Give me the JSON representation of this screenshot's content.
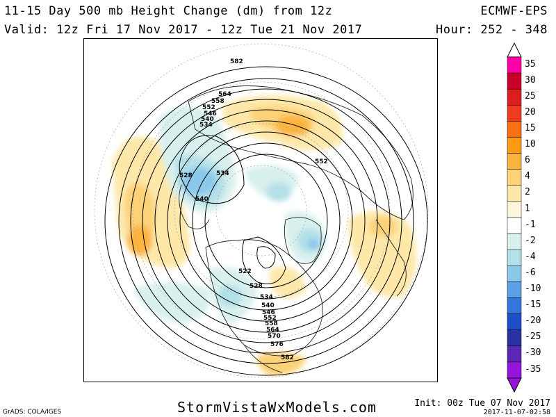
{
  "header": {
    "title": "11-15 Day 500 mb Height Change (dm) from 12z",
    "valid": "Valid: 12z Fri 17 Nov 2017 - 12z Tue 21 Nov 2017",
    "model": "ECMWF-EPS",
    "hour": "Hour: 252 - 348"
  },
  "footer": {
    "site": "StormVistaWxModels.com",
    "grads": "GrADS: COLA/IGES",
    "init": "Init: 00z Tue 07 Nov 2017",
    "stamp": "2017-11-07-02:58"
  },
  "colorbar": {
    "levels": [
      "35",
      "30",
      "25",
      "20",
      "15",
      "10",
      "6",
      "4",
      "2",
      "1",
      "-1",
      "-2",
      "-4",
      "-6",
      "-10",
      "-15",
      "-20",
      "-25",
      "-30",
      "-35"
    ],
    "colors": [
      "#ff00a8",
      "#c8002a",
      "#dc1e1e",
      "#f03c1e",
      "#fa6e14",
      "#ff9a14",
      "#fcb440",
      "#fcd278",
      "#fde8aa",
      "#fdf6dc",
      "#ffffff",
      "#d8f0ee",
      "#b4e0e8",
      "#8cc8ea",
      "#5aa0e6",
      "#3278dc",
      "#1e4ec8",
      "#2832a0",
      "#5a28b4",
      "#9614dc"
    ]
  },
  "contour_labels": [
    "582",
    "564",
    "558",
    "552",
    "546",
    "540",
    "534",
    "528",
    "534",
    "540",
    "552",
    "522",
    "528",
    "534",
    "540",
    "546",
    "552",
    "558",
    "564",
    "570",
    "576",
    "582"
  ],
  "icons": {
    "map": "polar-stereographic-map",
    "arrow_top": "triangle-up-icon",
    "arrow_bottom": "triangle-down-icon"
  }
}
